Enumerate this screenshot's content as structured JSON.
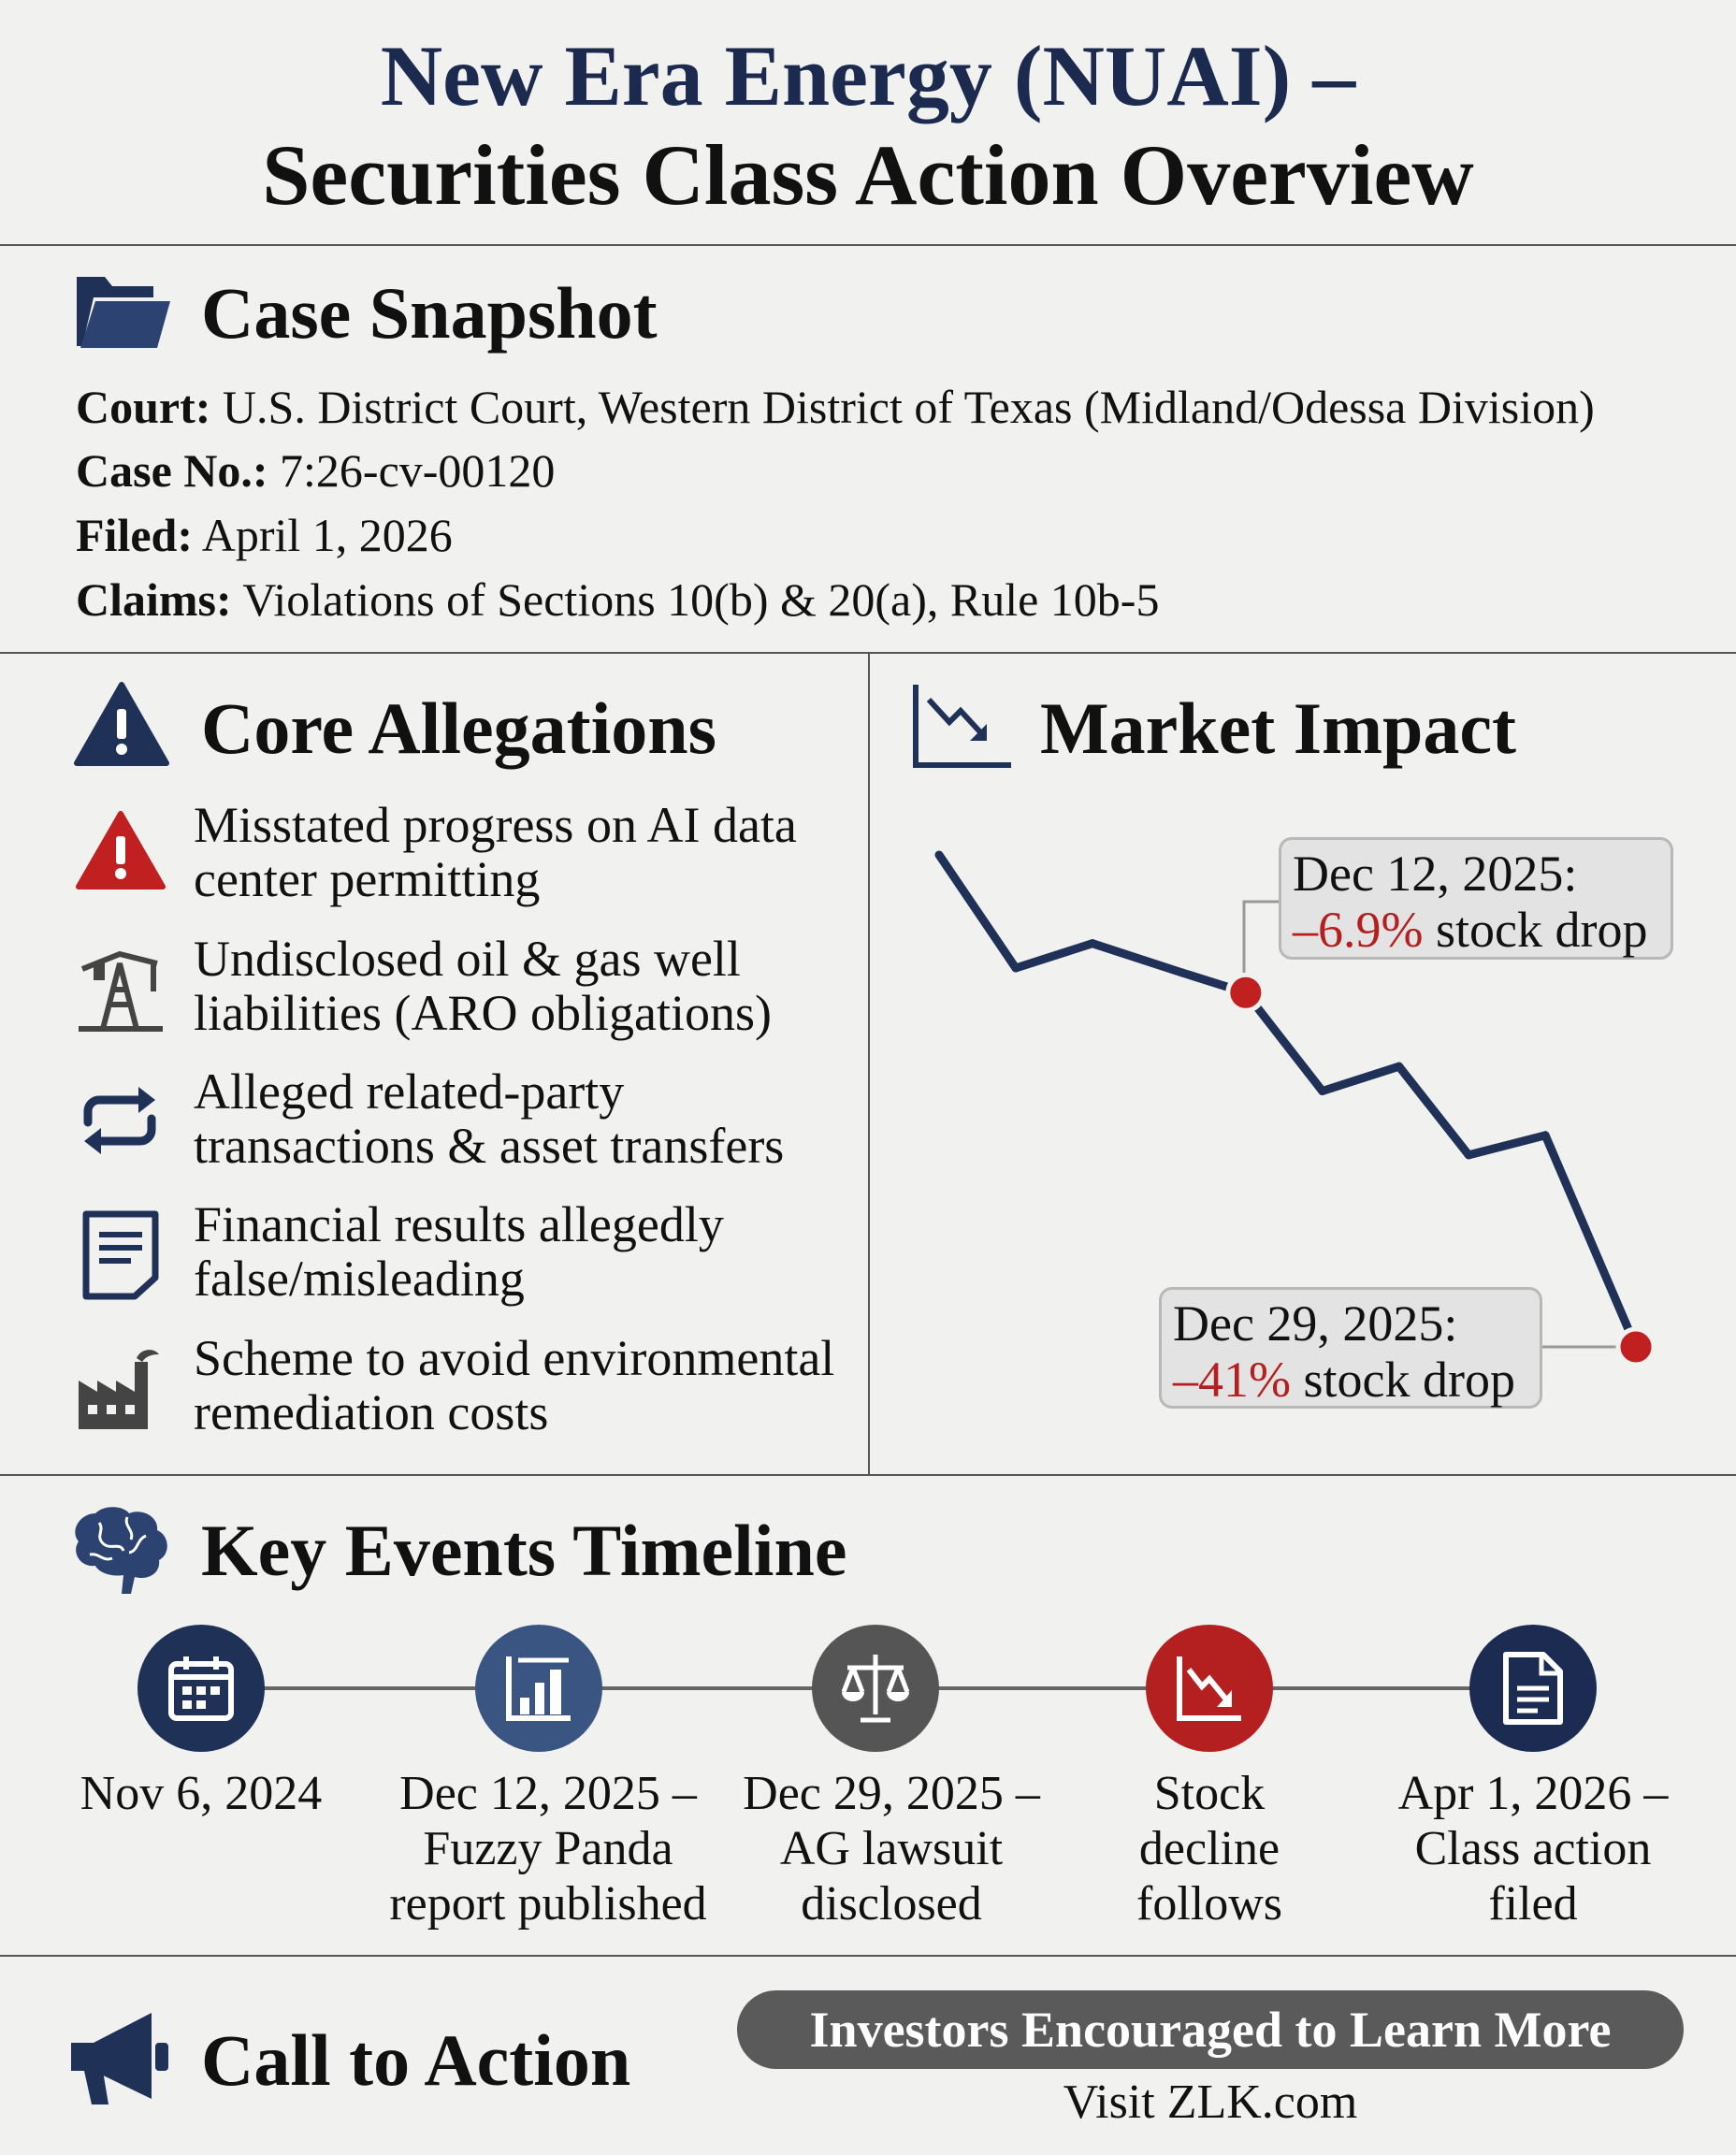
{
  "header": {
    "title_line1": "New Era Energy (NUAI) –",
    "title_line2": "Securities Class Action Overview"
  },
  "case_snapshot": {
    "heading": "Case Snapshot",
    "icon": "folder-icon",
    "rows": [
      {
        "label": "Court:",
        "value": "U.S. District Court, Western District of Texas (Midland/Odessa Division)"
      },
      {
        "label": "Case No.:",
        "value": "7:26-cv-00120"
      },
      {
        "label": "Filed:",
        "value": "April 1, 2026"
      },
      {
        "label": "Claims:",
        "value": "Violations of Sections 10(b) & 20(a), Rule 10b-5"
      }
    ]
  },
  "core_allegations": {
    "heading": "Core Allegations",
    "icon": "warning-icon",
    "items": [
      {
        "icon": "warning-red-icon",
        "text": "Misstated progress on AI data center permitting"
      },
      {
        "icon": "oil-pump-icon",
        "text": "Undisclosed oil & gas well liabilities (ARO obligations)"
      },
      {
        "icon": "exchange-arrows-icon",
        "text": "Alleged related-party transactions & asset transfers"
      },
      {
        "icon": "document-icon",
        "text": "Financial results allegedly false/misleading"
      },
      {
        "icon": "factory-icon",
        "text": "Scheme to avoid environmental remediation costs"
      }
    ]
  },
  "market_impact": {
    "heading": "Market Impact",
    "icon": "chart-down-icon",
    "callouts": [
      {
        "date": "Dec 12, 2025:",
        "change": "–6.9%",
        "suffix": " stock drop"
      },
      {
        "date": "Dec 29, 2025:",
        "change": "–41%",
        "suffix": " stock drop"
      }
    ]
  },
  "chart_data": {
    "type": "line",
    "title": "Market Impact",
    "xlabel": "",
    "ylabel": "",
    "x": [
      0,
      11,
      22,
      35,
      44,
      55,
      66,
      76,
      87,
      100
    ],
    "values": [
      100,
      77,
      82,
      76,
      72,
      52,
      57,
      39,
      43,
      0
    ],
    "highlighted_points": [
      4,
      9
    ],
    "line_color": "#1f3157",
    "marker_color": "#c0201f",
    "grid": false
  },
  "timeline": {
    "heading": "Key Events Timeline",
    "icon": "brain-icon",
    "events": [
      {
        "icon": "calendar-icon",
        "color": "#1f3157",
        "lines": [
          "Nov 6, 2024"
        ]
      },
      {
        "icon": "bar-chart-icon",
        "color": "#3b5583",
        "lines": [
          "Dec 12, 2025 –",
          "Fuzzy Panda",
          "report published"
        ]
      },
      {
        "icon": "scales-icon",
        "color": "#555555",
        "lines": [
          "Dec 29, 2025 –",
          "AG lawsuit",
          "disclosed"
        ]
      },
      {
        "icon": "chart-decline-icon",
        "color": "#b3201f",
        "lines": [
          "Stock",
          "decline",
          "follows"
        ]
      },
      {
        "icon": "file-icon",
        "color": "#1c2b52",
        "lines": [
          "Apr 1, 2026 –",
          "Class action",
          "filed"
        ]
      }
    ]
  },
  "cta": {
    "heading": "Call to Action",
    "icon": "megaphone-icon",
    "button": "Investors Encouraged to Learn More",
    "link": "Visit ZLK.com"
  }
}
